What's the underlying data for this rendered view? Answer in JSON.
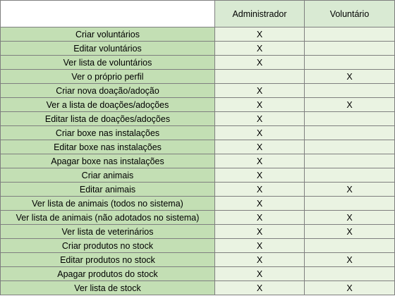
{
  "table": {
    "headers": [
      "",
      "Administrador",
      "Voluntário"
    ],
    "rows": [
      {
        "label": "Criar voluntários",
        "admin": "X",
        "volunteer": ""
      },
      {
        "label": "Editar voluntários",
        "admin": "X",
        "volunteer": ""
      },
      {
        "label": "Ver lista de voluntários",
        "admin": "X",
        "volunteer": ""
      },
      {
        "label": "Ver o próprio perfil",
        "admin": "",
        "volunteer": "X"
      },
      {
        "label": "Criar nova doação/adoção",
        "admin": "X",
        "volunteer": ""
      },
      {
        "label": "Ver a lista de doações/adoções",
        "admin": "X",
        "volunteer": "X"
      },
      {
        "label": "Editar lista de doações/adoções",
        "admin": "X",
        "volunteer": ""
      },
      {
        "label": "Criar boxe nas instalações",
        "admin": "X",
        "volunteer": ""
      },
      {
        "label": "Editar boxe nas instalações",
        "admin": "X",
        "volunteer": ""
      },
      {
        "label": "Apagar boxe nas instalações",
        "admin": "X",
        "volunteer": ""
      },
      {
        "label": "Criar animais",
        "admin": "X",
        "volunteer": ""
      },
      {
        "label": "Editar animais",
        "admin": "X",
        "volunteer": "X"
      },
      {
        "label": "Ver lista de animais (todos no sistema)",
        "admin": "X",
        "volunteer": ""
      },
      {
        "label": "Ver lista de animais (não adotados no sistema)",
        "admin": "X",
        "volunteer": "X"
      },
      {
        "label": "Ver lista de veterinários",
        "admin": "X",
        "volunteer": "X"
      },
      {
        "label": "Criar produtos no stock",
        "admin": "X",
        "volunteer": ""
      },
      {
        "label": "Editar produtos no stock",
        "admin": "X",
        "volunteer": "X"
      },
      {
        "label": "Apagar produtos do stock",
        "admin": "X",
        "volunteer": ""
      },
      {
        "label": "Ver lista de stock",
        "admin": "X",
        "volunteer": "X"
      }
    ]
  }
}
